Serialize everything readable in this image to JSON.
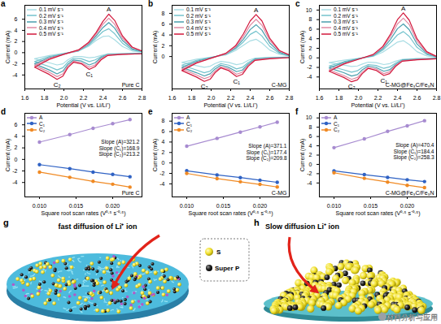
{
  "chart_data": [
    {
      "type": "line",
      "panel_label": "a",
      "sample_label": "Pure C",
      "x_label": "Potential (V vs. Li/Li⁺)",
      "y_label": "Current (mA)",
      "x": [
        2.8,
        2.6,
        2.45,
        2.38,
        2.32,
        2.26,
        2.18,
        2.1,
        2.04,
        1.99,
        1.93,
        1.85,
        1.7,
        1.85,
        2.0,
        2.15,
        2.25,
        2.33,
        2.4,
        2.46,
        2.52,
        2.6,
        2.7,
        2.8
      ],
      "series": [
        {
          "name": "0.1 mV s⁻¹",
          "color": "#a9dde4",
          "values": [
            -0.1,
            -0.15,
            -0.2,
            -0.5,
            -0.8,
            -0.9,
            -0.7,
            -0.7,
            -1.3,
            -2.0,
            -2.2,
            -1.8,
            -1.1,
            -0.5,
            -0.1,
            0.3,
            1.1,
            2.2,
            2.9,
            3.0,
            2.3,
            1.1,
            0.3,
            0.1
          ]
        },
        {
          "name": "0.2 mV s⁻¹",
          "color": "#74c3cd",
          "values": [
            -0.1,
            -0.2,
            -0.3,
            -0.7,
            -1.3,
            -1.6,
            -1.1,
            -1.0,
            -1.7,
            -2.7,
            -3.1,
            -2.5,
            -1.6,
            -0.7,
            -0.2,
            0.3,
            1.3,
            2.6,
            3.8,
            4.3,
            3.4,
            1.7,
            0.5,
            0.15
          ]
        },
        {
          "name": "0.3 mV s⁻¹",
          "color": "#4a9fae",
          "values": [
            -0.15,
            -0.25,
            -0.35,
            -0.9,
            -1.8,
            -2.2,
            -1.5,
            -1.3,
            -2.1,
            -3.3,
            -3.8,
            -3.1,
            -2.0,
            -0.9,
            -0.2,
            0.4,
            1.5,
            3.0,
            4.5,
            5.4,
            4.4,
            2.2,
            0.7,
            0.2
          ]
        },
        {
          "name": "0.4 mV s⁻¹",
          "color": "#e08aa3",
          "values": [
            -0.2,
            -0.3,
            -0.4,
            -1.1,
            -2.2,
            -2.6,
            -1.8,
            -1.5,
            -2.4,
            -3.8,
            -4.3,
            -3.5,
            -2.3,
            -1.0,
            -0.3,
            0.4,
            1.6,
            3.3,
            5.1,
            6.2,
            5.1,
            2.6,
            0.9,
            0.3
          ]
        },
        {
          "name": "0.5 mV s⁻¹",
          "color": "#d2183c",
          "values": [
            -0.2,
            -0.3,
            -0.5,
            -1.3,
            -2.5,
            -3.0,
            -2.0,
            -1.7,
            -2.7,
            -4.2,
            -4.8,
            -3.9,
            -2.6,
            -1.2,
            -0.3,
            0.5,
            1.8,
            3.6,
            5.6,
            6.9,
            5.8,
            3.0,
            1.0,
            0.3
          ]
        }
      ],
      "peak_labels": [
        "A",
        "C₁",
        "C₂"
      ],
      "xlim": [
        1.6,
        2.8
      ],
      "xticks": [
        1.6,
        1.8,
        {
          "value": 2,
          "label": "2.0"
        },
        2.2,
        2.4,
        2.6,
        2.8
      ],
      "ylim": [
        -6.5,
        8.5
      ],
      "yticks": [
        -4,
        -2,
        0,
        2,
        4,
        6
      ],
      "legend": "top-left"
    },
    {
      "type": "line",
      "panel_label": "b",
      "sample_label": "C-MG",
      "x_label": "Potential (V vs. Li/Li⁺)",
      "y_label": "Current (mA)",
      "x": [
        2.8,
        2.6,
        2.45,
        2.38,
        2.32,
        2.26,
        2.18,
        2.1,
        2.04,
        1.99,
        1.93,
        1.85,
        1.7,
        1.85,
        2.0,
        2.15,
        2.25,
        2.33,
        2.4,
        2.46,
        2.52,
        2.6,
        2.7,
        2.8
      ],
      "series": [
        {
          "name": "0.1 mV s⁻¹",
          "color": "#a9dde4",
          "values": [
            -0.1,
            -0.15,
            -0.3,
            -0.7,
            -1.3,
            -1.5,
            -1.1,
            -0.9,
            -1.3,
            -1.8,
            -2.0,
            -1.7,
            -1.1,
            -0.5,
            -0.1,
            0.3,
            1.1,
            2.1,
            2.9,
            3.2,
            2.5,
            1.2,
            0.4,
            0.1
          ]
        },
        {
          "name": "0.2 mV s⁻¹",
          "color": "#74c3cd",
          "values": [
            -0.1,
            -0.2,
            -0.4,
            -1.1,
            -2.0,
            -2.3,
            -1.6,
            -1.3,
            -1.9,
            -2.7,
            -3.0,
            -2.5,
            -1.6,
            -0.7,
            -0.2,
            0.4,
            1.4,
            2.7,
            4.1,
            4.7,
            3.8,
            1.9,
            0.6,
            0.15
          ]
        },
        {
          "name": "0.3 mV s⁻¹",
          "color": "#4a9fae",
          "values": [
            -0.15,
            -0.3,
            -0.5,
            -1.4,
            -2.5,
            -2.8,
            -2.0,
            -1.6,
            -2.3,
            -3.2,
            -3.6,
            -3.0,
            -2.0,
            -0.9,
            -0.2,
            0.5,
            1.6,
            3.2,
            5.0,
            5.9,
            4.9,
            2.5,
            0.8,
            0.2
          ]
        },
        {
          "name": "0.4 mV s⁻¹",
          "color": "#e08aa3",
          "values": [
            -0.2,
            -0.35,
            -0.6,
            -1.6,
            -2.9,
            -3.3,
            -2.3,
            -1.9,
            -2.7,
            -3.7,
            -4.1,
            -3.4,
            -2.3,
            -1.1,
            -0.3,
            0.5,
            1.8,
            3.7,
            5.8,
            6.9,
            5.8,
            3.0,
            1.0,
            0.3
          ]
        },
        {
          "name": "0.5 mV s⁻¹",
          "color": "#d2183c",
          "values": [
            -0.2,
            -0.4,
            -0.7,
            -1.8,
            -3.3,
            -3.7,
            -2.6,
            -2.1,
            -3.0,
            -4.2,
            -4.6,
            -3.8,
            -2.6,
            -1.2,
            -0.3,
            0.6,
            2.0,
            4.2,
            6.6,
            7.8,
            6.6,
            3.4,
            1.1,
            0.3
          ]
        }
      ],
      "peak_labels": [
        "A",
        "C₁",
        "C₂"
      ],
      "xlim": [
        1.6,
        2.8
      ],
      "xticks": [
        1.6,
        1.8,
        {
          "value": 2,
          "label": "2.0"
        },
        2.2,
        2.4,
        2.6,
        2.8
      ],
      "ylim": [
        -6,
        9.5
      ],
      "yticks": [
        0,
        2,
        4,
        6,
        8
      ],
      "legend": "top-left"
    },
    {
      "type": "line",
      "panel_label": "c",
      "sample_label": "C-MG@Fe₃C/Fe₃N",
      "x_label": "Potential (V vs. Li/Li⁺)",
      "y_label": "Current (mA)",
      "x": [
        2.8,
        2.6,
        2.45,
        2.38,
        2.32,
        2.26,
        2.18,
        2.1,
        2.04,
        1.99,
        1.93,
        1.85,
        1.7,
        1.85,
        2.0,
        2.15,
        2.25,
        2.33,
        2.4,
        2.46,
        2.52,
        2.6,
        2.7,
        2.8
      ],
      "series": [
        {
          "name": "0.1 mV s⁻¹",
          "color": "#a9dde4",
          "values": [
            -0.1,
            -0.15,
            -0.3,
            -0.7,
            -1.2,
            -1.4,
            -1.0,
            -0.9,
            -1.3,
            -1.7,
            -1.8,
            -1.5,
            -1.0,
            -0.5,
            -0.1,
            0.3,
            1.2,
            2.3,
            3.3,
            3.6,
            2.8,
            1.3,
            0.4,
            0.1
          ]
        },
        {
          "name": "0.2 mV s⁻¹",
          "color": "#74c3cd",
          "values": [
            -0.1,
            -0.2,
            -0.4,
            -1.1,
            -1.9,
            -2.2,
            -1.6,
            -1.4,
            -2.0,
            -2.7,
            -3.0,
            -2.5,
            -1.7,
            -0.8,
            -0.2,
            0.4,
            1.6,
            3.2,
            4.8,
            5.5,
            4.5,
            2.2,
            0.7,
            0.15
          ]
        },
        {
          "name": "0.3 mV s⁻¹",
          "color": "#4a9fae",
          "values": [
            -0.15,
            -0.3,
            -0.5,
            -1.4,
            -2.5,
            -2.8,
            -2.0,
            -1.7,
            -2.5,
            -3.5,
            -3.8,
            -3.1,
            -2.1,
            -1.0,
            -0.2,
            0.5,
            1.9,
            3.9,
            6.1,
            7.1,
            5.9,
            2.9,
            0.9,
            0.2
          ]
        },
        {
          "name": "0.4 mV s⁻¹",
          "color": "#e08aa3",
          "values": [
            -0.2,
            -0.35,
            -0.6,
            -1.6,
            -2.9,
            -3.3,
            -2.3,
            -2.0,
            -3.0,
            -4.1,
            -4.5,
            -3.7,
            -2.5,
            -1.2,
            -0.3,
            0.6,
            2.2,
            4.5,
            7.1,
            8.3,
            7.0,
            3.5,
            1.1,
            0.3
          ]
        },
        {
          "name": "0.5 mV s⁻¹",
          "color": "#d2183c",
          "values": [
            -0.2,
            -0.4,
            -0.7,
            -1.8,
            -3.3,
            -3.7,
            -2.6,
            -2.2,
            -3.3,
            -4.6,
            -5.0,
            -4.1,
            -2.8,
            -1.3,
            -0.3,
            0.7,
            2.4,
            5.0,
            8.0,
            9.4,
            7.9,
            4.0,
            1.3,
            0.3
          ]
        }
      ],
      "peak_labels": [
        "A",
        "C₁",
        "C₂"
      ],
      "xlim": [
        1.6,
        2.8
      ],
      "xticks": [
        1.6,
        1.8,
        {
          "value": 2,
          "label": "2.0"
        },
        2.2,
        2.4,
        2.6,
        2.8
      ],
      "ylim": [
        -6.5,
        11
      ],
      "yticks": [
        -4,
        -2,
        0,
        2,
        4,
        6,
        8,
        10
      ],
      "legend": "top-left"
    },
    {
      "type": "line",
      "marker": "circle",
      "panel_label": "d",
      "sample_label": "Pure C",
      "x_label": "Square root scan rates (V⁰·⁵ s⁻⁰·⁵)",
      "y_label": "Current (mA)",
      "x": [
        0.01,
        0.01414,
        0.01732,
        0.02,
        0.02236
      ],
      "series": [
        {
          "name": "A",
          "color": "#a78bd0",
          "values": [
            3.0,
            4.3,
            5.4,
            6.2,
            6.9
          ]
        },
        {
          "name": "C₁",
          "color": "#2f62c4",
          "values": [
            -0.9,
            -1.6,
            -2.2,
            -2.6,
            -3.0
          ]
        },
        {
          "name": "C₂",
          "color": "#f08a24",
          "values": [
            -2.2,
            -3.1,
            -3.8,
            -4.3,
            -4.8
          ]
        }
      ],
      "annotations": [
        "Slope (A)=321.2",
        "Slope (C₁)=168.9",
        "Slope (C₂)=213.2"
      ],
      "xlim": [
        0.008,
        0.024
      ],
      "xticks": [
        {
          "value": 0.01,
          "label": "0.010"
        },
        {
          "value": 0.015,
          "label": "0.015"
        },
        {
          "value": 0.02,
          "label": "0.020"
        }
      ],
      "ylim": [
        -6.5,
        8
      ],
      "yticks": [
        -4,
        -2,
        0,
        2,
        4,
        6
      ],
      "legend": "top-left"
    },
    {
      "type": "line",
      "marker": "circle",
      "panel_label": "e",
      "sample_label": "C-MG",
      "x_label": "Square root scan rates (V⁰·⁵ s⁻⁰·⁵)",
      "y_label": "Current (mA)",
      "x": [
        0.01,
        0.01414,
        0.01732,
        0.02,
        0.02236
      ],
      "series": [
        {
          "name": "A",
          "color": "#a78bd0",
          "values": [
            3.2,
            4.7,
            5.9,
            6.9,
            7.8
          ]
        },
        {
          "name": "C₁",
          "color": "#2f62c4",
          "values": [
            -1.5,
            -2.3,
            -2.8,
            -3.3,
            -3.7
          ]
        },
        {
          "name": "C₂",
          "color": "#f08a24",
          "values": [
            -2.0,
            -3.0,
            -3.6,
            -4.1,
            -4.6
          ]
        }
      ],
      "annotations": [
        "Slope (A)=371.1",
        "Slope (C₁)=177.4",
        "Slope (C₂)=209.8"
      ],
      "xlim": [
        0.008,
        0.024
      ],
      "xticks": [
        {
          "value": 0.01,
          "label": "0.010"
        },
        {
          "value": 0.015,
          "label": "0.015"
        },
        {
          "value": 0.02,
          "label": "0.020"
        }
      ],
      "ylim": [
        -6.5,
        9.5
      ],
      "yticks": [
        -4,
        -2,
        0,
        2,
        4,
        6,
        8
      ],
      "legend": "top-left"
    },
    {
      "type": "line",
      "marker": "circle",
      "panel_label": "f",
      "sample_label": "C-MG@Fe₃C/Fe₃N",
      "x_label": "Square root scan rates (V⁰·⁵ s⁻⁰·⁵)",
      "y_label": "Current (mA)",
      "x": [
        0.01,
        0.01414,
        0.01732,
        0.02,
        0.02236
      ],
      "series": [
        {
          "name": "A",
          "color": "#a78bd0",
          "values": [
            3.6,
            5.5,
            7.1,
            8.3,
            9.4
          ]
        },
        {
          "name": "C₁",
          "color": "#2f62c4",
          "values": [
            -1.4,
            -2.2,
            -2.8,
            -3.3,
            -3.7
          ]
        },
        {
          "name": "C₂",
          "color": "#f08a24",
          "values": [
            -1.8,
            -3.0,
            -3.8,
            -4.5,
            -5.0
          ]
        }
      ],
      "annotations": [
        "Slope (A)=470.4",
        "Slope (C₁)=184.4",
        "Slope (C₂)=258.3"
      ],
      "xlim": [
        0.008,
        0.024
      ],
      "xticks": [
        {
          "value": 0.01,
          "label": "0.010"
        },
        {
          "value": 0.015,
          "label": "0.015"
        },
        {
          "value": 0.02,
          "label": "0.020"
        }
      ],
      "ylim": [
        -7,
        11
      ],
      "yticks": [
        -4,
        -2,
        0,
        2,
        4,
        6,
        8,
        10
      ],
      "legend": "top-left"
    }
  ],
  "illustrations": {
    "g": {
      "panel_label": "g",
      "caption": "fast diffusion of Li⁺ ion"
    },
    "h": {
      "panel_label": "h",
      "caption": "Slow diffusion Li⁺ ion"
    },
    "key": [
      "S",
      "Super P"
    ]
  },
  "watermark": "材料分析与应用"
}
